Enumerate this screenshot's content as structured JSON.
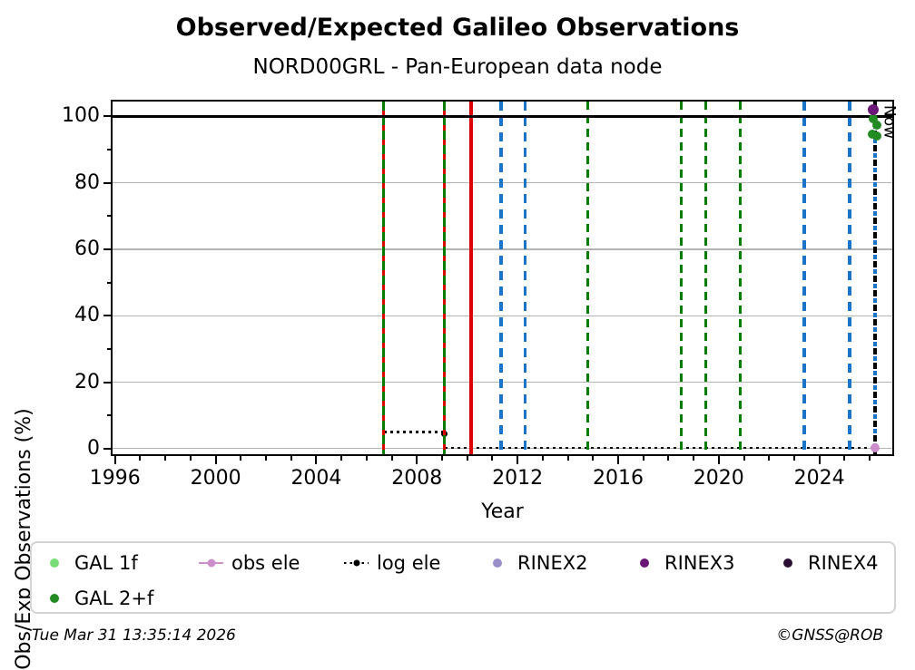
{
  "footer": {
    "timestamp": "Tue Mar 31 13:35:14 2026",
    "copyright": "©GNSS@ROB"
  },
  "colors": {
    "accent_green_line": "#007D00",
    "accent_blue_line": "#1C74C9",
    "accent_red_line": "#DE0000",
    "grid": "#b4b4b4"
  },
  "chart_data": {
    "type": "line",
    "title": "Observed/Expected Galileo Observations",
    "subtitle": "NORD00GRL - Pan-European data node",
    "xlabel": "Year",
    "ylabel": "Obs/Exp Observations (%)",
    "xlim": [
      1995.9,
      2026.9
    ],
    "ylim": [
      -1.7,
      104.5
    ],
    "xticks": [
      1996,
      2000,
      2004,
      2008,
      2012,
      2016,
      2020,
      2024
    ],
    "yticks": [
      0,
      20,
      40,
      60,
      80,
      100
    ],
    "grid": true,
    "reference_line_y": 100,
    "now_label": "Now",
    "event_vlines": [
      {
        "x": 2006.68,
        "style": "dashed",
        "color": "green-red"
      },
      {
        "x": 2009.1,
        "style": "dashed",
        "color": "green-red"
      },
      {
        "x": 2010.15,
        "style": "solid",
        "color": "red"
      },
      {
        "x": 2011.35,
        "style": "dashed",
        "color": "blue"
      },
      {
        "x": 2012.3,
        "style": "dashed",
        "color": "blue"
      },
      {
        "x": 2014.8,
        "style": "dashed",
        "color": "green"
      },
      {
        "x": 2018.5,
        "style": "dashed",
        "color": "green"
      },
      {
        "x": 2019.5,
        "style": "dashed",
        "color": "green"
      },
      {
        "x": 2020.85,
        "style": "dashed",
        "color": "green"
      },
      {
        "x": 2023.4,
        "style": "dashed",
        "color": "blue"
      },
      {
        "x": 2025.2,
        "style": "dashed",
        "color": "blue"
      },
      {
        "x": 2026.2,
        "style": "dashed",
        "color": "blue-black",
        "label": "Now"
      }
    ],
    "series": [
      {
        "name": "log ele",
        "type": "step-line",
        "style": "dotted",
        "color": "#000000",
        "markersize": 7,
        "segments": [
          {
            "x1": 2006.68,
            "x2": 2009.1,
            "y": 5.0
          },
          {
            "x1": 2009.1,
            "x2": 2026.3,
            "y": 0.2
          }
        ],
        "marker_at": [
          2009.1,
          4.5
        ]
      },
      {
        "name": "GAL 2+f",
        "type": "scatter",
        "color": "#228B22",
        "markersize": 10,
        "points": [
          [
            2026.15,
            99.4
          ],
          [
            2026.3,
            97.3
          ],
          [
            2026.1,
            94.7
          ],
          [
            2026.3,
            94.1
          ]
        ]
      },
      {
        "name": "RINEX3",
        "type": "scatter",
        "color": "#6B1778",
        "markersize": 12,
        "points": [
          [
            2026.15,
            102.0
          ]
        ]
      },
      {
        "name": "obs ele",
        "type": "scatter",
        "color": "#CC8FCC",
        "markersize": 10,
        "points": [
          [
            2026.2,
            0.3
          ]
        ]
      }
    ],
    "legend": {
      "position": "below",
      "items": [
        {
          "label": "GAL 1f",
          "marker": "dot",
          "color": "#77DD77"
        },
        {
          "label": "obs ele",
          "marker": "line-dot",
          "color": "#CC8FCC"
        },
        {
          "label": "log ele",
          "marker": "dotted-line-dot",
          "color": "#000000"
        },
        {
          "label": "RINEX2",
          "marker": "dot",
          "color": "#9A8FC8"
        },
        {
          "label": "RINEX3",
          "marker": "dot",
          "color": "#6B1778"
        },
        {
          "label": "RINEX4",
          "marker": "dot",
          "color": "#2B0F33"
        },
        {
          "label": "GAL 2+f",
          "marker": "dot",
          "color": "#228B22"
        }
      ]
    }
  }
}
